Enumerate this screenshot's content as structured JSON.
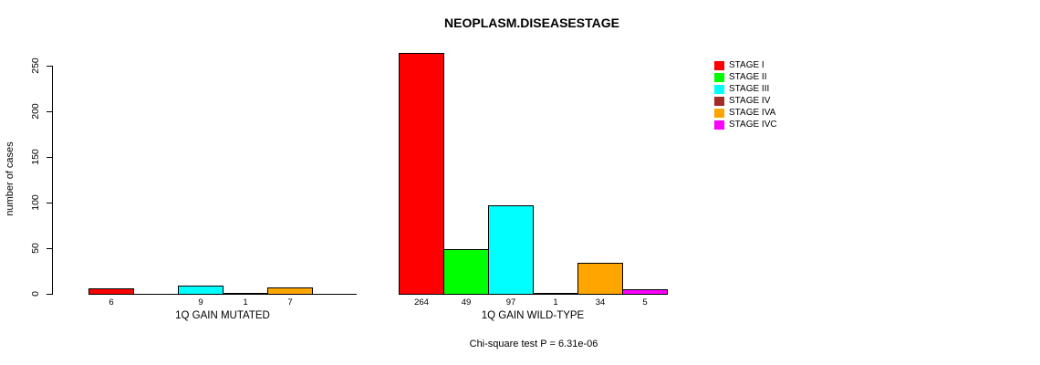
{
  "chart_data": {
    "type": "bar",
    "title": "NEOPLASM.DISEASESTAGE",
    "ylabel": "number of cases",
    "xlabel": "",
    "ylim": [
      0,
      250
    ],
    "yticks": [
      0,
      50,
      100,
      150,
      200,
      250
    ],
    "categories": [
      "STAGE I",
      "STAGE II",
      "STAGE III",
      "STAGE IV",
      "STAGE IVA",
      "STAGE IVC"
    ],
    "series_colors": [
      "#FF0000",
      "#00FF00",
      "#00FFFF",
      "#A52A2A",
      "#FFA500",
      "#FF00FF"
    ],
    "groups": [
      {
        "label": "1Q GAIN MUTATED",
        "values": [
          6,
          0,
          9,
          1,
          7,
          0
        ]
      },
      {
        "label": "1Q GAIN WILD-TYPE",
        "values": [
          264,
          49,
          97,
          1,
          34,
          5
        ]
      }
    ],
    "legend": {
      "position": "right",
      "entries": [
        {
          "label": "STAGE I",
          "color": "#FF0000"
        },
        {
          "label": "STAGE II",
          "color": "#00FF00"
        },
        {
          "label": "STAGE III",
          "color": "#00FFFF"
        },
        {
          "label": "STAGE IV",
          "color": "#A52A2A"
        },
        {
          "label": "STAGE IVA",
          "color": "#FFA500"
        },
        {
          "label": "STAGE IVC",
          "color": "#FF00FF"
        }
      ]
    },
    "annotation": "Chi-square test P = 6.31e-06",
    "grid": false
  }
}
